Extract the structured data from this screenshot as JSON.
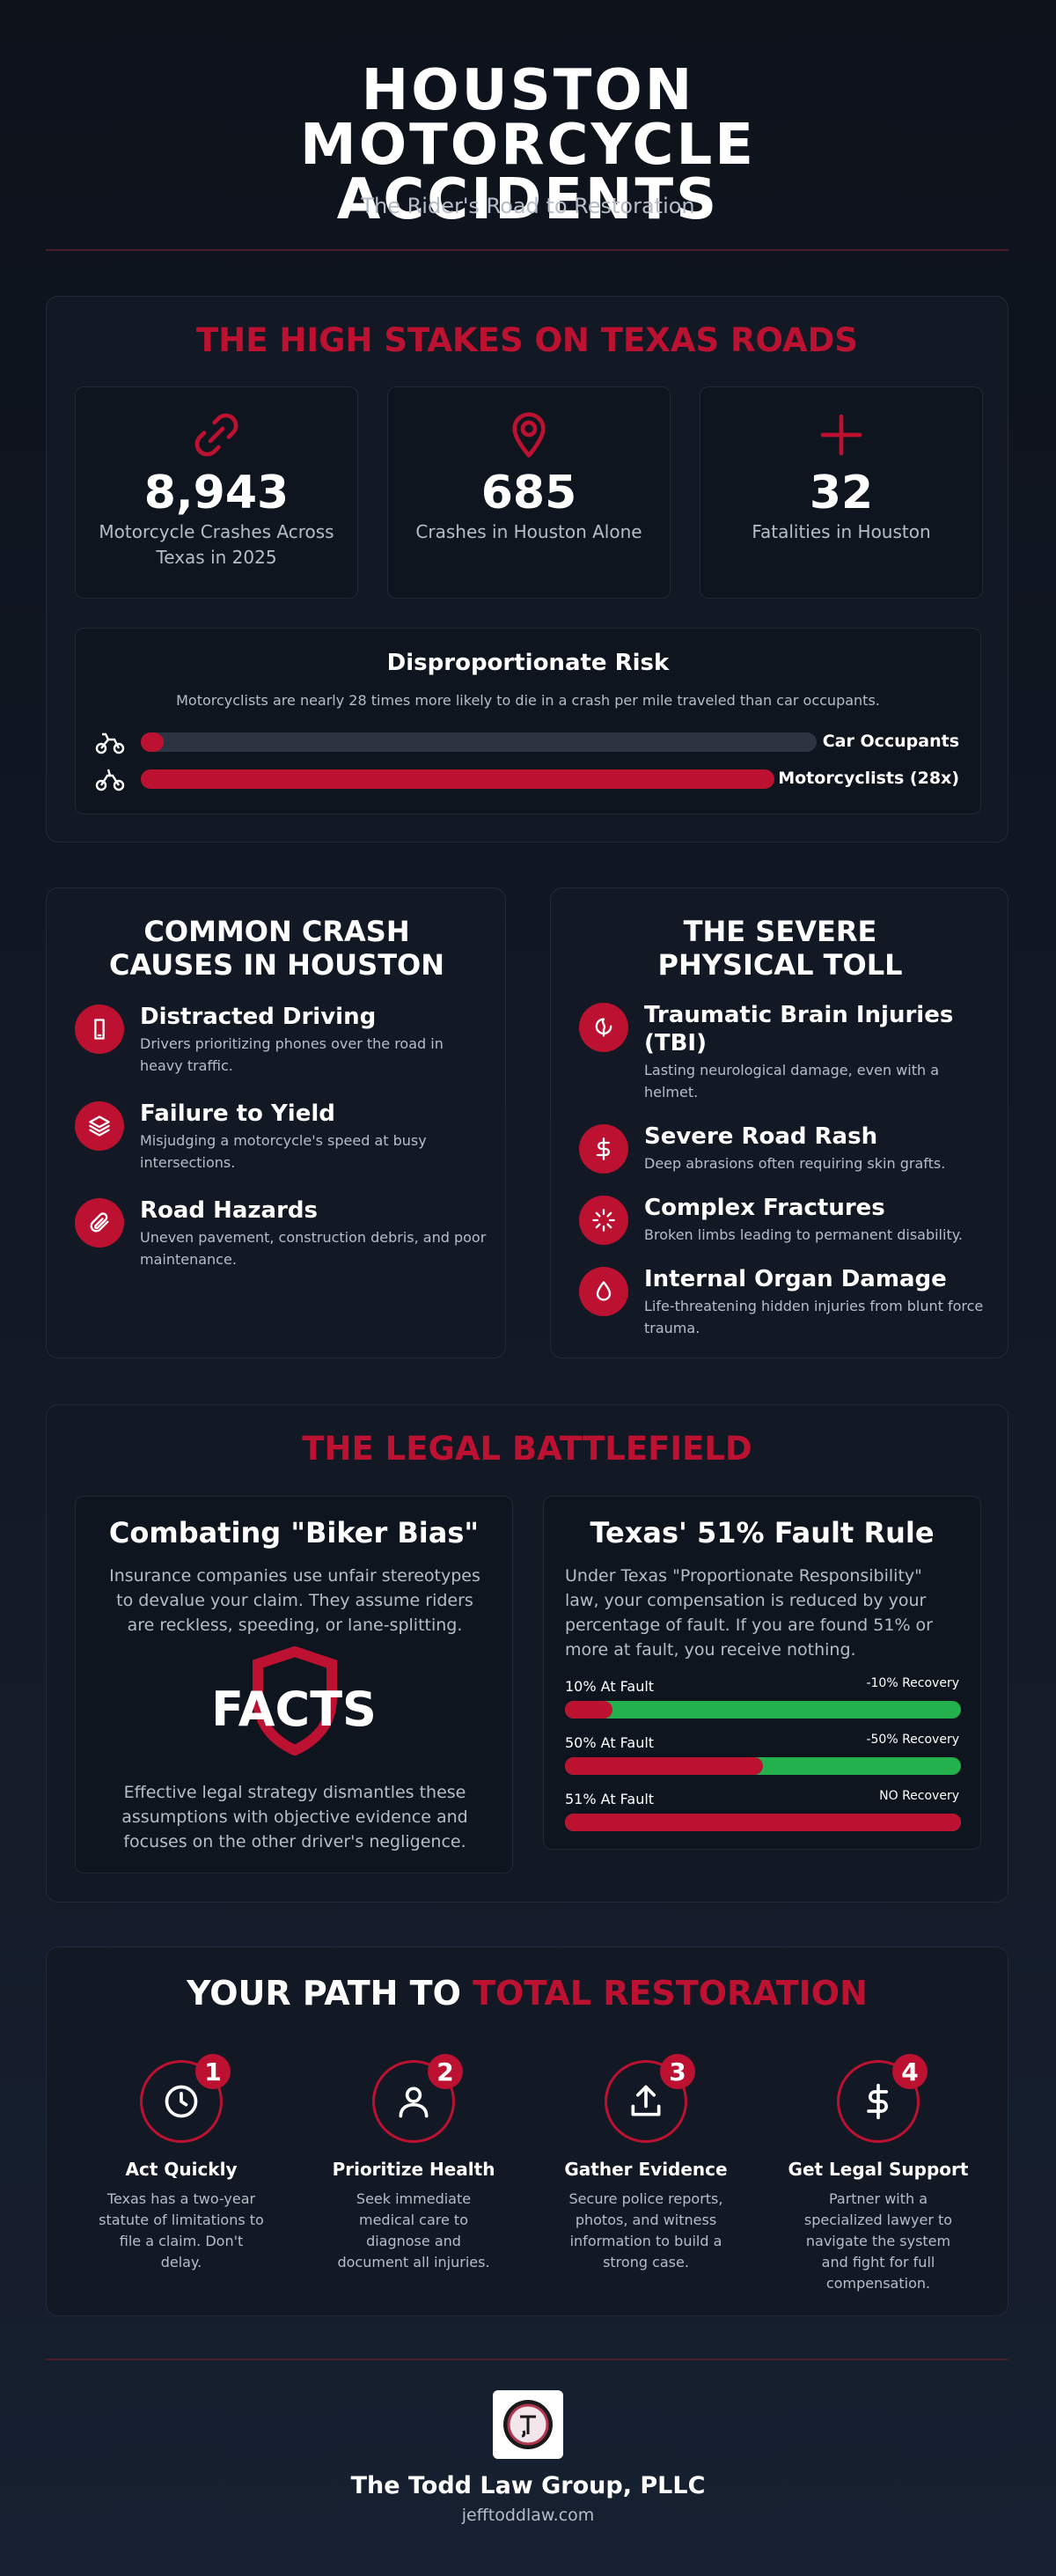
{
  "header": {
    "title": "HOUSTON MOTORCYCLE ACCIDENTS",
    "subtitle": "The Rider's Road to Restoration"
  },
  "stakes": {
    "heading": "THE HIGH STAKES ON TEXAS ROADS",
    "stats": [
      {
        "value": "8,943",
        "label": "Motorcycle Crashes Across Texas in 2025"
      },
      {
        "value": "685",
        "label": "Crashes in Houston Alone"
      },
      {
        "value": "32",
        "label": "Fatalities in Houston"
      }
    ],
    "risk": {
      "title": "Disproportionate Risk",
      "text": "Motorcyclists are nearly 28 times more likely to die in a crash per mile traveled than car occupants.",
      "bars": [
        {
          "label": "Car Occupants"
        },
        {
          "label": "Motorcyclists (28x)"
        }
      ]
    }
  },
  "causes": {
    "heading": "COMMON CRASH CAUSES IN HOUSTON",
    "items": [
      {
        "title": "Distracted Driving",
        "text": "Drivers prioritizing phones over the road in heavy traffic."
      },
      {
        "title": "Failure to Yield",
        "text": "Misjudging a motorcycle's speed at busy intersections."
      },
      {
        "title": "Road Hazards",
        "text": "Uneven pavement, construction debris, and poor maintenance."
      }
    ]
  },
  "toll": {
    "heading": "THE SEVERE PHYSICAL TOLL",
    "items": [
      {
        "title": "Traumatic Brain Injuries (TBI)",
        "text": "Lasting neurological damage, even with a helmet."
      },
      {
        "title": "Severe Road Rash",
        "text": "Deep abrasions often requiring skin grafts."
      },
      {
        "title": "Complex Fractures",
        "text": "Broken limbs leading to permanent disability."
      },
      {
        "title": "Internal Organ Damage",
        "text": "Life-threatening hidden injuries from blunt force trauma."
      }
    ]
  },
  "legal": {
    "heading": "THE LEGAL BATTLEFIELD",
    "bias": {
      "title": "Combating \"Biker Bias\"",
      "text": "Insurance companies use unfair stereotypes to devalue your claim. They assume riders are reckless, speeding, or lane-splitting.",
      "badge": "FACTS",
      "footer": "Effective legal strategy dismantles these assumptions with objective evidence and focuses on the other driver's negligence."
    },
    "fault": {
      "title": "Texas' 51% Fault Rule",
      "text": "Under Texas \"Proportionate Responsibility\" law, your compensation is reduced by your percentage of fault. If you are found 51% or more at fault, you receive nothing.",
      "rows": [
        {
          "label": "10% At Fault",
          "outcome": "-10% Recovery"
        },
        {
          "label": "50% At Fault",
          "outcome": "-50% Recovery"
        },
        {
          "label": "51% At Fault",
          "outcome": "NO Recovery"
        }
      ]
    }
  },
  "path": {
    "heading_prefix": "YOUR PATH TO",
    "heading_highlight": "TOTAL RESTORATION",
    "steps": [
      {
        "number": 1,
        "title": "Act Quickly",
        "text": "Texas has a two-year statute of limitations to file a claim. Don't delay."
      },
      {
        "number": 2,
        "title": "Prioritize Health",
        "text": "Seek immediate medical care to diagnose and document all injuries."
      },
      {
        "number": 3,
        "title": "Gather Evidence",
        "text": "Secure police reports, photos, and witness information to build a strong case."
      },
      {
        "number": 4,
        "title": "Get Legal Support",
        "text": "Partner with a specialized lawyer to navigate the system and fight for full compensation."
      }
    ]
  },
  "footer": {
    "name": "The Todd Law Group, PLLC",
    "url": "jefftoddlaw.com"
  }
}
